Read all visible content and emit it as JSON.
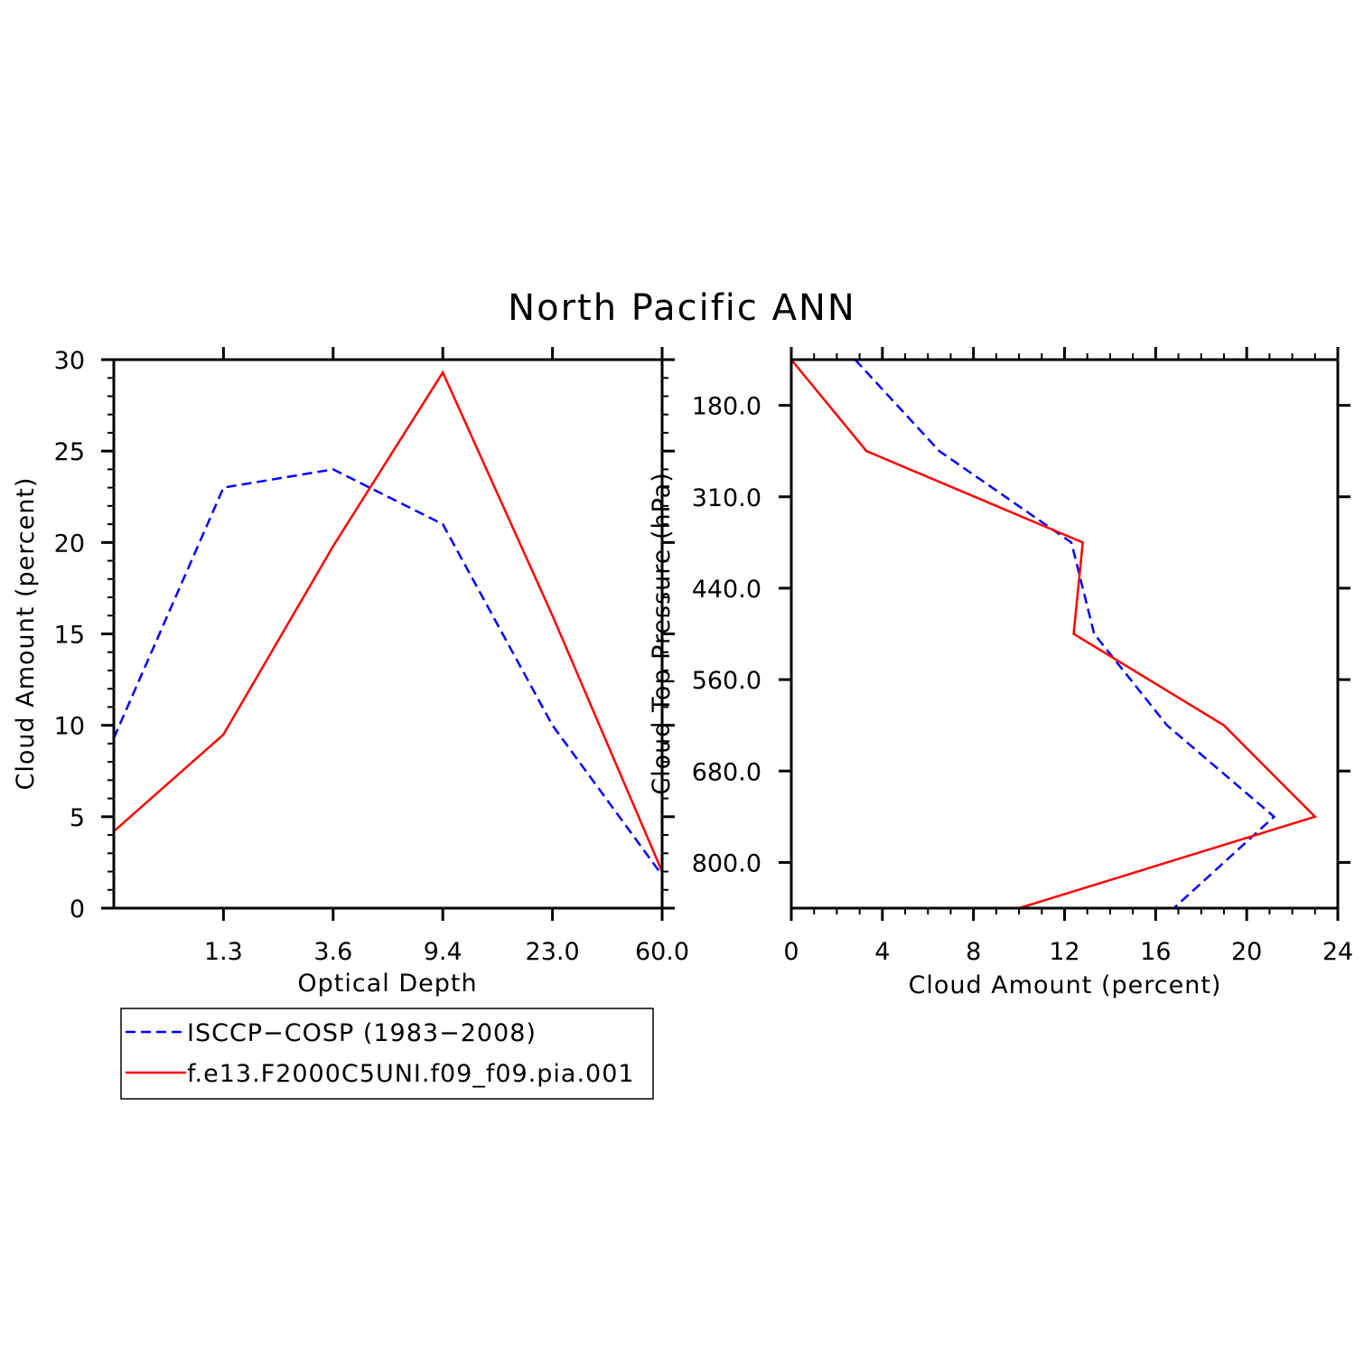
{
  "title": "North Pacific ANN",
  "colors": {
    "obs": "#0000ff",
    "model": "#ff0000",
    "axis": "#000000"
  },
  "legend": {
    "placement": "below-left",
    "items": [
      {
        "label": "ISCCP−COSP (1983−2008)",
        "color": "#0000ff",
        "style": "dashed"
      },
      {
        "label": "f.e13.F2000C5UNI.f09_f09.pia.001",
        "color": "#ff0000",
        "style": "solid"
      }
    ]
  },
  "chart_data": [
    {
      "type": "line",
      "xlabel": "Optical Depth",
      "ylabel": "Cloud Amount (percent)",
      "x_scale": "categorical bins (7 bin centers)",
      "xtick_labels": [
        "1.3",
        "3.6",
        "9.4",
        "23.0",
        "60.0"
      ],
      "xtick_bins": [
        1.5,
        2.5,
        3.5,
        4.5,
        5.5
      ],
      "x_bins": [
        1,
        2,
        3,
        4,
        5,
        6,
        7
      ],
      "xlim": [
        0.5,
        5.5
      ],
      "ylim": [
        0,
        30
      ],
      "yticks": [
        0,
        5,
        10,
        15,
        20,
        25,
        30
      ],
      "y_minor_step": 1,
      "grid": false,
      "series": [
        {
          "name": "ISCCP−COSP (1983−2008)",
          "color": "#0000ff",
          "style": "dashed",
          "x": [
            0.5,
            1.5,
            2.5,
            3.5,
            4.5,
            5.5
          ],
          "values": [
            9.3,
            23.0,
            24.0,
            21.0,
            10.0,
            1.8
          ]
        },
        {
          "name": "f.e13.F2000C5UNI.f09_f09.pia.001",
          "color": "#ff0000",
          "style": "solid",
          "x": [
            0.5,
            1.5,
            2.5,
            3.5,
            4.5,
            5.5
          ],
          "values": [
            4.2,
            9.5,
            19.8,
            29.3,
            16.0,
            2.0
          ]
        }
      ]
    },
    {
      "type": "line",
      "orientation": "vertical-profile",
      "xlabel": "Cloud Amount (percent)",
      "ylabel": "Cloud Top Pressure (hPa)",
      "xlim": [
        0,
        24
      ],
      "xticks": [
        0,
        4,
        8,
        12,
        16,
        20,
        24
      ],
      "x_minor_step": 1,
      "ytick_labels": [
        "180.0",
        "310.0",
        "440.0",
        "560.0",
        "680.0",
        "800.0"
      ],
      "ylim_levels": [
        0,
        12
      ],
      "ytick_levels": [
        1,
        3,
        5,
        7,
        9,
        11
      ],
      "y_direction": "pressure increases downward",
      "grid": false,
      "series": [
        {
          "name": "ISCCP−COSP (1983−2008)",
          "color": "#0000ff",
          "style": "dashed",
          "values": [
            2.8,
            6.5,
            12.3,
            13.3,
            16.5,
            21.2,
            16.8
          ],
          "levels": [
            0,
            2,
            4,
            6,
            8,
            10,
            12
          ]
        },
        {
          "name": "f.e13.F2000C5UNI.f09_f09.pia.001",
          "color": "#ff0000",
          "style": "solid",
          "values": [
            0.0,
            3.3,
            12.8,
            12.4,
            19.0,
            23.0,
            10.0
          ],
          "levels": [
            0,
            2,
            4,
            6,
            8,
            10,
            12
          ]
        }
      ]
    }
  ]
}
